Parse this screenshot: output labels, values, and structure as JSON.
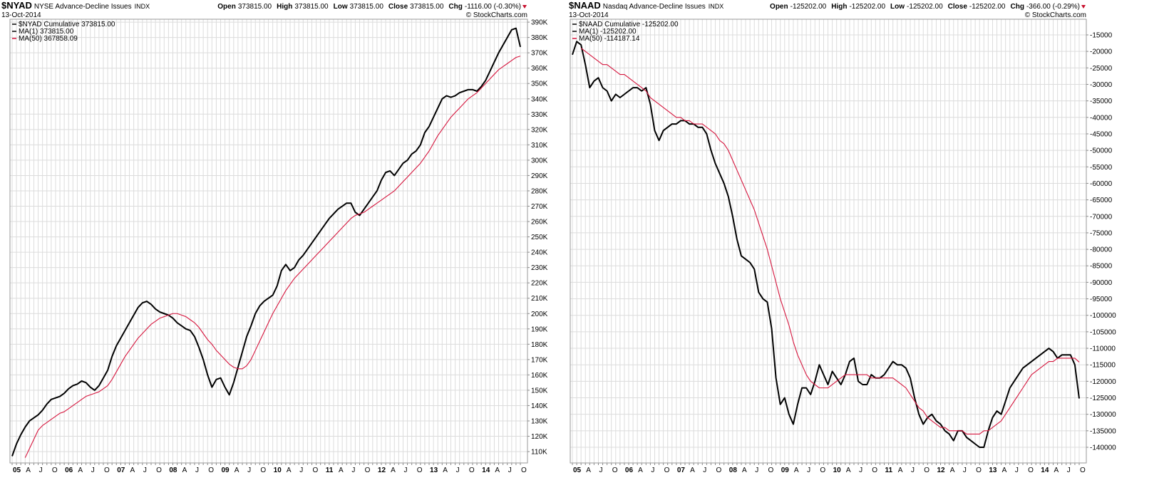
{
  "chart_data": [
    {
      "type": "line",
      "symbol": "$NYAD",
      "title": "NYSE Advance-Decline Issues",
      "exchange": "INDX",
      "date": "13-Oct-2014",
      "quote": [
        {
          "label": "Open",
          "value": "373815.00"
        },
        {
          "label": "High",
          "value": "373815.00"
        },
        {
          "label": "Low",
          "value": "373815.00"
        },
        {
          "label": "Close",
          "value": "373815.00"
        },
        {
          "label": "Chg",
          "value": "-1116.00 (-0.30%)"
        }
      ],
      "credit": "© StockCharts.com",
      "legend_extra": "MA(1) 373815.00",
      "categories": [
        "05",
        null,
        null,
        "A",
        null,
        null,
        "J",
        null,
        null,
        "O",
        null,
        null,
        "06",
        null,
        null,
        "A",
        null,
        null,
        "J",
        null,
        null,
        "O",
        null,
        null,
        "07",
        null,
        null,
        "A",
        null,
        null,
        "J",
        null,
        null,
        "O",
        null,
        null,
        "08",
        null,
        null,
        "A",
        null,
        null,
        "J",
        null,
        null,
        "O",
        null,
        null,
        "09",
        null,
        null,
        "A",
        null,
        null,
        "J",
        null,
        null,
        "O",
        null,
        null,
        "10",
        null,
        null,
        "A",
        null,
        null,
        "J",
        null,
        null,
        "O",
        null,
        null,
        "11",
        null,
        null,
        "A",
        null,
        null,
        "J",
        null,
        null,
        "O",
        null,
        null,
        "12",
        null,
        null,
        "A",
        null,
        null,
        "J",
        null,
        null,
        "O",
        null,
        null,
        "13",
        null,
        null,
        "A",
        null,
        null,
        "J",
        null,
        null,
        "O",
        null,
        null,
        "14",
        null,
        null,
        "A",
        null,
        null,
        "J",
        null,
        null,
        "O"
      ],
      "series": [
        {
          "name": "$NYAD Cumulative 373815.00",
          "color": "#000000",
          "values": [
            107000,
            115000,
            121000,
            126000,
            130000,
            132000,
            134000,
            137000,
            141000,
            144000,
            145000,
            146000,
            148000,
            151000,
            153000,
            154000,
            156000,
            155000,
            152000,
            150000,
            153000,
            158000,
            163000,
            172000,
            179000,
            184000,
            189000,
            194000,
            199000,
            204000,
            207000,
            208000,
            206000,
            203000,
            201000,
            200000,
            199000,
            197000,
            194000,
            192000,
            190000,
            189000,
            185000,
            178000,
            170000,
            160000,
            152000,
            157000,
            158000,
            152000,
            147000,
            155000,
            165000,
            175000,
            185000,
            192000,
            200000,
            205000,
            208000,
            210000,
            212000,
            218000,
            228000,
            232000,
            228000,
            230000,
            235000,
            238000,
            242000,
            246000,
            250000,
            254000,
            258000,
            262000,
            265000,
            268000,
            270000,
            272000,
            272000,
            266000,
            264000,
            268000,
            272000,
            276000,
            280000,
            287000,
            292000,
            293000,
            290000,
            294000,
            298000,
            300000,
            304000,
            306000,
            310000,
            318000,
            322000,
            328000,
            334000,
            340000,
            342000,
            341000,
            342000,
            344000,
            345000,
            346000,
            346000,
            345000,
            348000,
            352000,
            358000,
            364000,
            370000,
            375000,
            380000,
            385000,
            386000,
            373815
          ]
        },
        {
          "name": "MA(50) 367858.09",
          "color": "#d6153d",
          "values": [
            null,
            null,
            null,
            106000,
            112000,
            118000,
            124000,
            127000,
            129000,
            131000,
            133000,
            135000,
            136000,
            138000,
            140000,
            142000,
            144000,
            146000,
            147000,
            148000,
            149000,
            151000,
            153000,
            157000,
            162000,
            167000,
            172000,
            176000,
            180000,
            184000,
            187000,
            190000,
            193000,
            195000,
            197000,
            198000,
            199000,
            200000,
            200000,
            199000,
            198000,
            196000,
            194000,
            191000,
            187000,
            183000,
            180000,
            176000,
            173000,
            170000,
            167000,
            165000,
            164000,
            164000,
            166000,
            170000,
            176000,
            182000,
            188000,
            194000,
            200000,
            205000,
            210000,
            215000,
            219000,
            223000,
            226000,
            229000,
            232000,
            235000,
            238000,
            241000,
            244000,
            247000,
            250000,
            253000,
            256000,
            259000,
            262000,
            264000,
            265000,
            266000,
            268000,
            270000,
            272000,
            274000,
            276000,
            278000,
            280000,
            283000,
            286000,
            289000,
            292000,
            295000,
            298000,
            302000,
            306000,
            311000,
            316000,
            320000,
            324000,
            328000,
            331000,
            334000,
            337000,
            340000,
            342000,
            344000,
            347000,
            350000,
            353000,
            356000,
            359000,
            361000,
            363000,
            365000,
            367000,
            367858.09
          ]
        }
      ],
      "ylim": [
        102600,
        391900
      ],
      "yticks": [
        {
          "value": 110000,
          "label": "110K"
        },
        {
          "value": 120000,
          "label": "120K"
        },
        {
          "value": 130000,
          "label": "130K"
        },
        {
          "value": 140000,
          "label": "140K"
        },
        {
          "value": 150000,
          "label": "150K"
        },
        {
          "value": 160000,
          "label": "160K"
        },
        {
          "value": 170000,
          "label": "170K"
        },
        {
          "value": 180000,
          "label": "180K"
        },
        {
          "value": 190000,
          "label": "190K"
        },
        {
          "value": 200000,
          "label": "200K"
        },
        {
          "value": 210000,
          "label": "210K"
        },
        {
          "value": 220000,
          "label": "220K"
        },
        {
          "value": 230000,
          "label": "230K"
        },
        {
          "value": 240000,
          "label": "240K"
        },
        {
          "value": 250000,
          "label": "250K"
        },
        {
          "value": 260000,
          "label": "260K"
        },
        {
          "value": 270000,
          "label": "270K"
        },
        {
          "value": 280000,
          "label": "280K"
        },
        {
          "value": 290000,
          "label": "290K"
        },
        {
          "value": 300000,
          "label": "300K"
        },
        {
          "value": 310000,
          "label": "310K"
        },
        {
          "value": 320000,
          "label": "320K"
        },
        {
          "value": 330000,
          "label": "330K"
        },
        {
          "value": 340000,
          "label": "340K"
        },
        {
          "value": 350000,
          "label": "350K"
        },
        {
          "value": 360000,
          "label": "360K"
        },
        {
          "value": 370000,
          "label": "370K"
        },
        {
          "value": 380000,
          "label": "380K"
        },
        {
          "value": 390000,
          "label": "390K"
        }
      ],
      "grid": true
    },
    {
      "type": "line",
      "symbol": "$NAAD",
      "title": "Nasdaq Advance-Decline Issues",
      "exchange": "INDX",
      "date": "13-Oct-2014",
      "quote": [
        {
          "label": "Open",
          "value": "-125202.00"
        },
        {
          "label": "High",
          "value": "-125202.00"
        },
        {
          "label": "Low",
          "value": "-125202.00"
        },
        {
          "label": "Close",
          "value": "-125202.00"
        },
        {
          "label": "Chg",
          "value": "-366.00 (-0.29%)"
        }
      ],
      "credit": "© StockCharts.com",
      "legend_extra": "MA(1) -125202.00",
      "categories": [
        "05",
        null,
        null,
        "A",
        null,
        null,
        "J",
        null,
        null,
        "O",
        null,
        null,
        "06",
        null,
        null,
        "A",
        null,
        null,
        "J",
        null,
        null,
        "O",
        null,
        null,
        "07",
        null,
        null,
        "A",
        null,
        null,
        "J",
        null,
        null,
        "O",
        null,
        null,
        "08",
        null,
        null,
        "A",
        null,
        null,
        "J",
        null,
        null,
        "O",
        null,
        null,
        "09",
        null,
        null,
        "A",
        null,
        null,
        "J",
        null,
        null,
        "O",
        null,
        null,
        "10",
        null,
        null,
        "A",
        null,
        null,
        "J",
        null,
        null,
        "O",
        null,
        null,
        "11",
        null,
        null,
        "A",
        null,
        null,
        "J",
        null,
        null,
        "O",
        null,
        null,
        "12",
        null,
        null,
        "A",
        null,
        null,
        "J",
        null,
        null,
        "O",
        null,
        null,
        "13",
        null,
        null,
        "A",
        null,
        null,
        "J",
        null,
        null,
        "O",
        null,
        null,
        "14",
        null,
        null,
        "A",
        null,
        null,
        "J",
        null,
        null,
        "O"
      ],
      "series": [
        {
          "name": "$NAAD Cumulative -125202.00",
          "color": "#000000",
          "values": [
            -21000,
            -17000,
            -18000,
            -24000,
            -31000,
            -29000,
            -28000,
            -31000,
            -32000,
            -35000,
            -33000,
            -34000,
            -33000,
            -32000,
            -31000,
            -31000,
            -32000,
            -31000,
            -36000,
            -44000,
            -47000,
            -44000,
            -43000,
            -42000,
            -42000,
            -41000,
            -41000,
            -42000,
            -42000,
            -43000,
            -43000,
            -45000,
            -50000,
            -54000,
            -57000,
            -60000,
            -64000,
            -70000,
            -77000,
            -82000,
            -83000,
            -84000,
            -86000,
            -93000,
            -95000,
            -96000,
            -104000,
            -119000,
            -127000,
            -125000,
            -130000,
            -133000,
            -127000,
            -122000,
            -122000,
            -124000,
            -120000,
            -115000,
            -118000,
            -121000,
            -117000,
            -119000,
            -121000,
            -118000,
            -114000,
            -113000,
            -120000,
            -121000,
            -121000,
            -118000,
            -119000,
            -119000,
            -118000,
            -116000,
            -114000,
            -115000,
            -115000,
            -116000,
            -119000,
            -125000,
            -130000,
            -133000,
            -131000,
            -130000,
            -132000,
            -133000,
            -135000,
            -136000,
            -138000,
            -135000,
            -135000,
            -137000,
            -138000,
            -139000,
            -140000,
            -140000,
            -135000,
            -131000,
            -129000,
            -130000,
            -126000,
            -122000,
            -120000,
            -118000,
            -116000,
            -115000,
            -114000,
            -113000,
            -112000,
            -111000,
            -110000,
            -111000,
            -113000,
            -112000,
            -112000,
            -112000,
            -115000,
            -125202
          ]
        },
        {
          "name": "MA(50) -114187.14",
          "color": "#d6153d",
          "values": [
            null,
            null,
            -19000,
            -20000,
            -21000,
            -22000,
            -23000,
            -24000,
            -24000,
            -25000,
            -26000,
            -27000,
            -27000,
            -28000,
            -29000,
            -30000,
            -31000,
            -32000,
            -34000,
            -35000,
            -36000,
            -37000,
            -38000,
            -39000,
            -40000,
            -40000,
            -41000,
            -41000,
            -42000,
            -42000,
            -42000,
            -43000,
            -44000,
            -45000,
            -47000,
            -48000,
            -50000,
            -53000,
            -56000,
            -59000,
            -62000,
            -65000,
            -68000,
            -72000,
            -76000,
            -80000,
            -85000,
            -90000,
            -95000,
            -99000,
            -103000,
            -108000,
            -112000,
            -115000,
            -118000,
            -120000,
            -121000,
            -122000,
            -122000,
            -122000,
            -121000,
            -120000,
            -119000,
            -118000,
            -118000,
            -118000,
            -118000,
            -118000,
            -118000,
            -119000,
            -119000,
            -119000,
            -119000,
            -119000,
            -119000,
            -120000,
            -121000,
            -122000,
            -124000,
            -126000,
            -128000,
            -129000,
            -131000,
            -132000,
            -133000,
            -134000,
            -134000,
            -135000,
            -135000,
            -135000,
            -135000,
            -136000,
            -136000,
            -136000,
            -136000,
            -135000,
            -135000,
            -134000,
            -133000,
            -132000,
            -130000,
            -128000,
            -126000,
            -124000,
            -122000,
            -120000,
            -118000,
            -117000,
            -116000,
            -115000,
            -114000,
            -114000,
            -113000,
            -113000,
            -113000,
            -113000,
            -113000,
            -114187.14
          ]
        }
      ],
      "ylim": [
        -144750,
        -10250
      ],
      "yticks": [
        -140000,
        -135000,
        -130000,
        -125000,
        -120000,
        -115000,
        -110000,
        -105000,
        -100000,
        -95000,
        -90000,
        -85000,
        -80000,
        -75000,
        -70000,
        -65000,
        -60000,
        -55000,
        -50000,
        -45000,
        -40000,
        -35000,
        -30000,
        -25000,
        -20000,
        -15000
      ],
      "grid": true
    }
  ]
}
